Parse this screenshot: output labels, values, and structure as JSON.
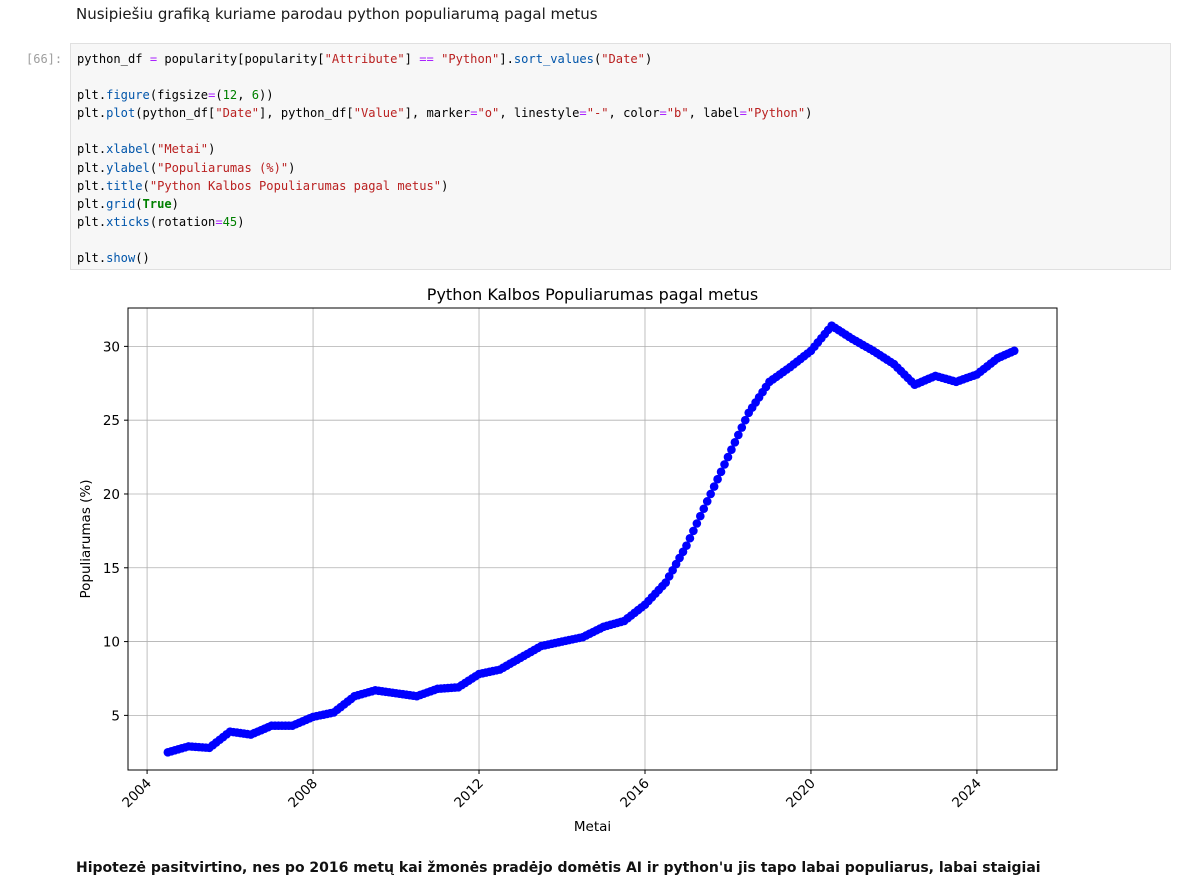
{
  "markdown_top": "Nusipiešiu grafiką kuriame parodau python populiarumą pagal metus",
  "cell_prompt": "[66]:",
  "code_lines": [
    [
      {
        "t": "python_df "
      },
      {
        "t": "=",
        "c": "op"
      },
      {
        "t": " popularity[popularity["
      },
      {
        "t": "\"Attribute\"",
        "c": "str"
      },
      {
        "t": "] "
      },
      {
        "t": "==",
        "c": "op"
      },
      {
        "t": " "
      },
      {
        "t": "\"Python\"",
        "c": "str"
      },
      {
        "t": "]."
      },
      {
        "t": "sort_values",
        "c": "fn"
      },
      {
        "t": "("
      },
      {
        "t": "\"Date\"",
        "c": "str"
      },
      {
        "t": ")"
      }
    ],
    [],
    [
      {
        "t": "plt."
      },
      {
        "t": "figure",
        "c": "fn"
      },
      {
        "t": "(figsize"
      },
      {
        "t": "=",
        "c": "op"
      },
      {
        "t": "("
      },
      {
        "t": "12",
        "c": "num"
      },
      {
        "t": ", "
      },
      {
        "t": "6",
        "c": "num"
      },
      {
        "t": "))"
      }
    ],
    [
      {
        "t": "plt."
      },
      {
        "t": "plot",
        "c": "fn"
      },
      {
        "t": "(python_df["
      },
      {
        "t": "\"Date\"",
        "c": "str"
      },
      {
        "t": "], python_df["
      },
      {
        "t": "\"Value\"",
        "c": "str"
      },
      {
        "t": "], marker"
      },
      {
        "t": "=",
        "c": "op"
      },
      {
        "t": "\"o\"",
        "c": "str"
      },
      {
        "t": ", linestyle"
      },
      {
        "t": "=",
        "c": "op"
      },
      {
        "t": "\"-\"",
        "c": "str"
      },
      {
        "t": ", color"
      },
      {
        "t": "=",
        "c": "op"
      },
      {
        "t": "\"b\"",
        "c": "str"
      },
      {
        "t": ", label"
      },
      {
        "t": "=",
        "c": "op"
      },
      {
        "t": "\"Python\"",
        "c": "str"
      },
      {
        "t": ")"
      }
    ],
    [],
    [
      {
        "t": "plt."
      },
      {
        "t": "xlabel",
        "c": "fn"
      },
      {
        "t": "("
      },
      {
        "t": "\"Metai\"",
        "c": "str"
      },
      {
        "t": ")"
      }
    ],
    [
      {
        "t": "plt."
      },
      {
        "t": "ylabel",
        "c": "fn"
      },
      {
        "t": "("
      },
      {
        "t": "\"Populiarumas (%)\"",
        "c": "str"
      },
      {
        "t": ")"
      }
    ],
    [
      {
        "t": "plt."
      },
      {
        "t": "title",
        "c": "fn"
      },
      {
        "t": "("
      },
      {
        "t": "\"Python Kalbos Populiarumas pagal metus\"",
        "c": "str"
      },
      {
        "t": ")"
      }
    ],
    [
      {
        "t": "plt."
      },
      {
        "t": "grid",
        "c": "fn"
      },
      {
        "t": "("
      },
      {
        "t": "True",
        "c": "kw"
      },
      {
        "t": ")"
      }
    ],
    [
      {
        "t": "plt."
      },
      {
        "t": "xticks",
        "c": "fn"
      },
      {
        "t": "(rotation"
      },
      {
        "t": "=",
        "c": "op"
      },
      {
        "t": "45",
        "c": "num"
      },
      {
        "t": ")"
      }
    ],
    [],
    [
      {
        "t": "plt."
      },
      {
        "t": "show",
        "c": "fn"
      },
      {
        "t": "()"
      }
    ]
  ],
  "chart_data": {
    "type": "line",
    "title": "Python Kalbos Populiarumas pagal metus",
    "xlabel": "Metai",
    "ylabel": "Populiarumas (%)",
    "xlim": [
      2003.54,
      2025.93
    ],
    "ylim": [
      1.3,
      32.6
    ],
    "xticks": [
      2004,
      2008,
      2012,
      2016,
      2020,
      2024
    ],
    "yticks": [
      5,
      10,
      15,
      20,
      25,
      30
    ],
    "grid": true,
    "color": "#0000ff",
    "marker": "o",
    "x": [
      2004.5,
      2005.0,
      2005.5,
      2006.0,
      2006.5,
      2007.0,
      2007.5,
      2008.0,
      2008.5,
      2009.0,
      2009.5,
      2010.0,
      2010.5,
      2011.0,
      2011.5,
      2012.0,
      2012.5,
      2013.0,
      2013.5,
      2014.0,
      2014.5,
      2015.0,
      2015.5,
      2016.0,
      2016.5,
      2017.0,
      2017.5,
      2018.0,
      2018.5,
      2019.0,
      2019.5,
      2020.0,
      2020.5,
      2021.0,
      2021.5,
      2022.0,
      2022.5,
      2023.0,
      2023.5,
      2024.0,
      2024.5,
      2024.9
    ],
    "y": [
      2.5,
      2.9,
      2.8,
      3.9,
      3.7,
      4.3,
      4.3,
      4.9,
      5.2,
      6.3,
      6.7,
      6.5,
      6.3,
      6.8,
      6.9,
      7.8,
      8.1,
      8.9,
      9.7,
      10.0,
      10.3,
      11.0,
      11.4,
      12.5,
      14.0,
      16.5,
      19.5,
      22.5,
      25.5,
      27.6,
      28.6,
      29.7,
      31.4,
      30.5,
      29.7,
      28.8,
      27.4,
      28.0,
      27.6,
      28.1,
      29.2,
      29.7
    ]
  },
  "markdown_bottom": "Hipotezė pasitvirtino, nes po 2016 metų kai žmonės pradėjo domėtis AI ir python'u jis tapo labai populiarus, labai staigiai"
}
